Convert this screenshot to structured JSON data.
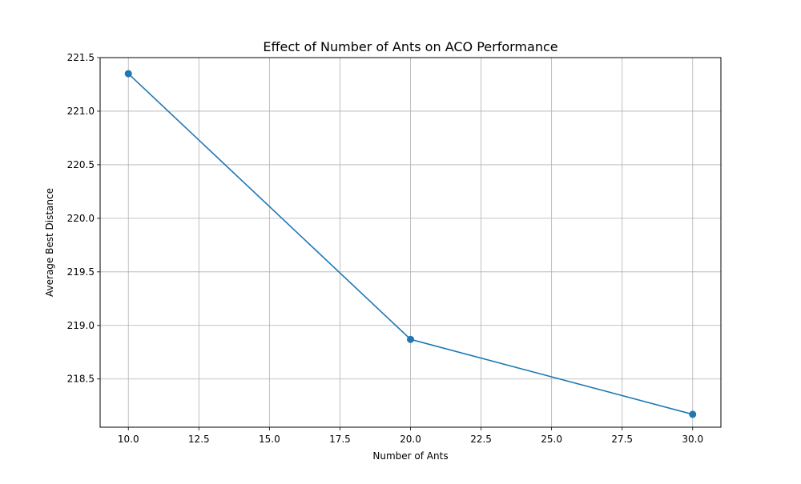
{
  "chart_data": {
    "type": "line",
    "title": "Effect of Number of Ants on ACO Performance",
    "xlabel": "Number of Ants",
    "ylabel": "Average Best Distance",
    "x": [
      10,
      20,
      30
    ],
    "series": [
      {
        "values": [
          221.35,
          218.87,
          218.17
        ]
      }
    ],
    "xlim": [
      9,
      31
    ],
    "ylim": [
      218.05,
      221.5
    ],
    "xticks": [
      10.0,
      12.5,
      15.0,
      17.5,
      20.0,
      22.5,
      25.0,
      27.5,
      30.0
    ],
    "xtick_labels": [
      "10.0",
      "12.5",
      "15.0",
      "17.5",
      "20.0",
      "22.5",
      "25.0",
      "27.5",
      "30.0"
    ],
    "yticks": [
      218.5,
      219.0,
      219.5,
      220.0,
      220.5,
      221.0,
      221.5
    ],
    "ytick_labels": [
      "218.5",
      "219.0",
      "219.5",
      "220.0",
      "220.5",
      "221.0",
      "221.5"
    ],
    "grid": true,
    "marker": "circle",
    "colors": {
      "line": "#1f77b4",
      "grid": "#b0b0b0",
      "axes": "#000000"
    }
  }
}
